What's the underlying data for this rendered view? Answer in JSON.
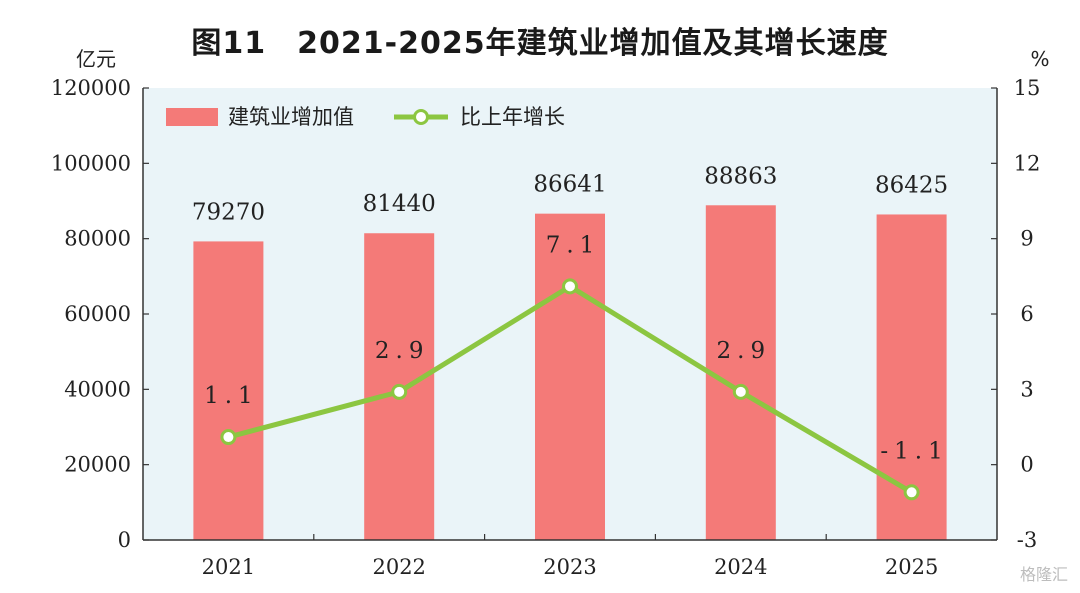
{
  "title": "图11　2021-2025年建筑业增加值及其增长速度",
  "watermark": "格隆汇",
  "colors": {
    "bar": "#f47a78",
    "line": "#8cc641",
    "plot_bg": "#eaf4f8",
    "axis": "#333333"
  },
  "chart_data": {
    "type": "bar",
    "categories": [
      "2021",
      "2022",
      "2023",
      "2024",
      "2025"
    ],
    "series": [
      {
        "name": "建筑业增加值",
        "type": "bar",
        "axis": "left",
        "values": [
          79270,
          81440,
          86641,
          88863,
          86425
        ]
      },
      {
        "name": "比上年增长",
        "type": "line",
        "axis": "right",
        "values": [
          1.1,
          2.9,
          7.1,
          2.9,
          -1.1
        ]
      }
    ],
    "y_left": {
      "unit": "亿元",
      "ylim": [
        0,
        120000
      ],
      "ticks": [
        0,
        20000,
        40000,
        60000,
        80000,
        100000,
        120000
      ]
    },
    "y_right": {
      "unit": "%",
      "ylim": [
        -3,
        15
      ],
      "ticks": [
        -3,
        0,
        3,
        6,
        9,
        12,
        15
      ]
    },
    "bar_labels": [
      "79270",
      "81440",
      "86641",
      "88863",
      "86425"
    ],
    "line_labels": [
      "1.1",
      "2.9",
      "7.1",
      "2.9",
      "-1.1"
    ],
    "legend": {
      "placement": "top-left",
      "items": [
        "建筑业增加值",
        "比上年增长"
      ]
    },
    "grid": false
  }
}
